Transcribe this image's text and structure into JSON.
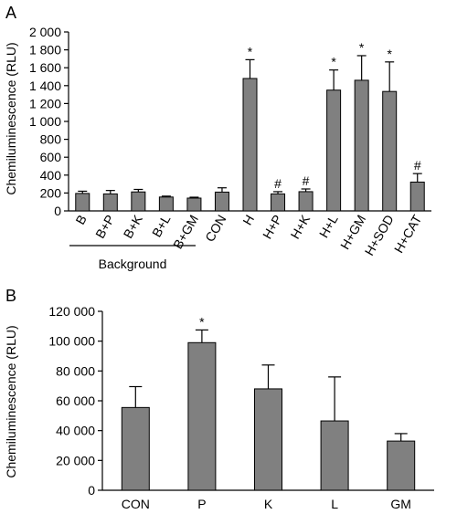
{
  "chart_data": [
    {
      "panel": "A",
      "type": "bar",
      "ylabel": "Chemiluminescence (RLU)",
      "ylim": [
        0,
        2000
      ],
      "yticks": [
        "0",
        "200",
        "400",
        "600",
        "800",
        "1 000",
        "1 200",
        "1 400",
        "1 600",
        "1 800",
        "2 000"
      ],
      "categories": [
        "B",
        "B+P",
        "B+K",
        "B+L",
        "B+GM",
        "CON",
        "H",
        "H+P",
        "H+K",
        "H+L",
        "H+GM",
        "H+SOD",
        "H+CAT"
      ],
      "values": [
        195,
        190,
        212,
        155,
        143,
        210,
        1480,
        190,
        215,
        1350,
        1460,
        1335,
        322
      ],
      "errors": [
        25,
        38,
        28,
        10,
        10,
        48,
        210,
        25,
        30,
        225,
        275,
        330,
        95
      ],
      "markers": [
        "",
        "",
        "",
        "",
        "",
        "",
        "*",
        "#",
        "#",
        "*",
        "*",
        "*",
        "#"
      ],
      "group_label": "Background",
      "bar_color": "#808080"
    },
    {
      "panel": "B",
      "type": "bar",
      "ylabel": "Chemiluminescence (RLU)",
      "ylim": [
        0,
        120000
      ],
      "yticks": [
        "0",
        "20 000",
        "40 000",
        "60 000",
        "80 000",
        "100 000",
        "120 000"
      ],
      "categories": [
        "CON",
        "P",
        "K",
        "L",
        "GM"
      ],
      "values": [
        55500,
        99000,
        68000,
        46500,
        33000
      ],
      "errors": [
        14000,
        8500,
        16000,
        29500,
        5000
      ],
      "markers": [
        "",
        "*",
        "",
        "",
        ""
      ],
      "bar_color": "#808080"
    }
  ]
}
